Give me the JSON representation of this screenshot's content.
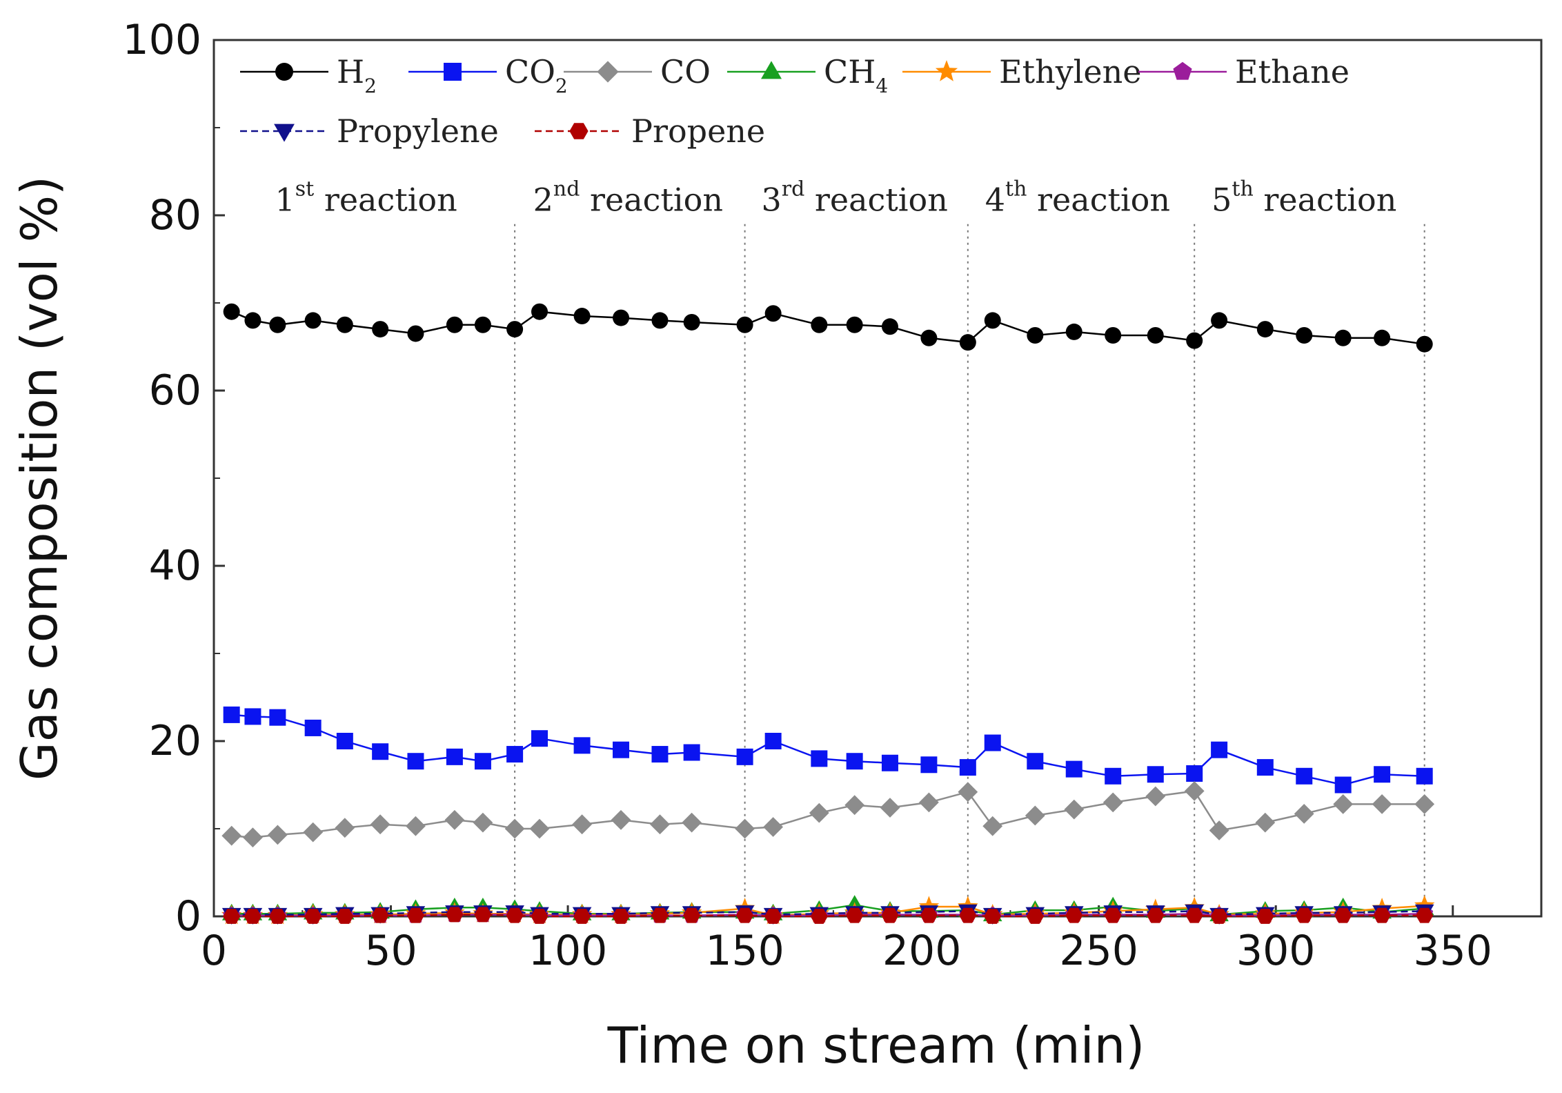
{
  "chart_data": {
    "type": "line",
    "xlabel": "Time on stream (min)",
    "ylabel": "Gas composition (vol %)",
    "xlim": [
      0,
      375
    ],
    "ylim": [
      0,
      100
    ],
    "xticks": [
      0,
      50,
      100,
      150,
      200,
      250,
      300,
      350
    ],
    "yticks": [
      0,
      20,
      40,
      60,
      80,
      100
    ],
    "grid": false,
    "legend_position": "top",
    "reaction_boundaries": [
      85,
      150,
      213,
      277,
      342
    ],
    "reactions": [
      {
        "num": "1",
        "sup": "st",
        "text": "reaction",
        "x": 43
      },
      {
        "num": "2",
        "sup": "nd",
        "text": "reaction",
        "x": 117
      },
      {
        "num": "3",
        "sup": "rd",
        "text": "reaction",
        "x": 181
      },
      {
        "num": "4",
        "sup": "th",
        "text": "reaction",
        "x": 244
      },
      {
        "num": "5",
        "sup": "th",
        "text": "reaction",
        "x": 308
      }
    ],
    "series": [
      {
        "name": "H2",
        "label": "H",
        "sub": "2",
        "color": "#000000",
        "marker": "circle",
        "dash": false,
        "x": [
          5,
          11,
          18,
          28,
          37,
          47,
          57,
          68,
          76,
          85,
          92,
          104,
          115,
          126,
          135,
          150,
          158,
          171,
          181,
          191,
          202,
          213,
          220,
          232,
          243,
          254,
          266,
          277,
          284,
          297,
          308,
          319,
          330,
          342
        ],
        "y": [
          69,
          68,
          67.5,
          68,
          67.5,
          67,
          66.5,
          67.5,
          67.5,
          67,
          69,
          68.5,
          68.3,
          68,
          67.8,
          67.5,
          68.8,
          67.5,
          67.5,
          67.3,
          66,
          65.5,
          68,
          66.3,
          66.7,
          66.3,
          66.3,
          65.7,
          68,
          67,
          66.3,
          66,
          66,
          65.3
        ]
      },
      {
        "name": "CO2",
        "label": "CO",
        "sub": "2",
        "color": "#0a14f0",
        "marker": "square",
        "dash": false,
        "x": [
          5,
          11,
          18,
          28,
          37,
          47,
          57,
          68,
          76,
          85,
          92,
          104,
          115,
          126,
          135,
          150,
          158,
          171,
          181,
          191,
          202,
          213,
          220,
          232,
          243,
          254,
          266,
          277,
          284,
          297,
          308,
          319,
          330,
          342
        ],
        "y": [
          23,
          22.8,
          22.7,
          21.5,
          20,
          18.8,
          17.7,
          18.2,
          17.7,
          18.5,
          20.3,
          19.5,
          19,
          18.5,
          18.7,
          18.2,
          20,
          18,
          17.7,
          17.5,
          17.3,
          17,
          19.8,
          17.7,
          16.8,
          16,
          16.2,
          16.3,
          19,
          17,
          16,
          15,
          16.2,
          16
        ]
      },
      {
        "name": "CO",
        "label": "CO",
        "sub": "",
        "color": "#8c8c8c",
        "marker": "diamond",
        "dash": false,
        "x": [
          5,
          11,
          18,
          28,
          37,
          47,
          57,
          68,
          76,
          85,
          92,
          104,
          115,
          126,
          135,
          150,
          158,
          171,
          181,
          191,
          202,
          213,
          220,
          232,
          243,
          254,
          266,
          277,
          284,
          297,
          308,
          319,
          330,
          342
        ],
        "y": [
          9.2,
          9,
          9.3,
          9.6,
          10.1,
          10.5,
          10.3,
          11,
          10.7,
          10,
          10,
          10.5,
          11,
          10.5,
          10.7,
          10,
          10.2,
          11.8,
          12.7,
          12.4,
          13,
          14.2,
          10.3,
          11.5,
          12.2,
          13,
          13.7,
          14.3,
          9.8,
          10.7,
          11.7,
          12.8,
          12.8,
          12.8
        ]
      },
      {
        "name": "CH4",
        "label": "CH",
        "sub": "4",
        "color": "#18a020",
        "marker": "triangle-up",
        "dash": false,
        "x": [
          5,
          11,
          18,
          28,
          37,
          47,
          57,
          68,
          76,
          85,
          92,
          104,
          115,
          126,
          135,
          150,
          158,
          171,
          181,
          191,
          202,
          213,
          220,
          232,
          243,
          254,
          266,
          277,
          284,
          297,
          308,
          319,
          330,
          342
        ],
        "y": [
          0.3,
          0.3,
          0.3,
          0.4,
          0.4,
          0.5,
          0.8,
          1,
          1,
          0.8,
          0.6,
          0.3,
          0.3,
          0.4,
          0.5,
          0.5,
          0.3,
          0.7,
          1.3,
          0.6,
          0.6,
          0.7,
          0.2,
          0.7,
          0.7,
          1.1,
          0.6,
          0.9,
          0.2,
          0.6,
          0.7,
          1,
          0.5,
          0.9
        ]
      },
      {
        "name": "Ethylene",
        "label": "Ethylene",
        "sub": "",
        "color": "#ff8c00",
        "marker": "star",
        "dash": false,
        "x": [
          5,
          11,
          18,
          28,
          37,
          47,
          57,
          68,
          76,
          85,
          92,
          104,
          115,
          126,
          135,
          150,
          158,
          171,
          181,
          191,
          202,
          213,
          220,
          232,
          243,
          254,
          266,
          277,
          284,
          297,
          308,
          319,
          330,
          342
        ],
        "y": [
          0.1,
          0.1,
          0.1,
          0.2,
          0.2,
          0.2,
          0.3,
          0.4,
          0.3,
          0.3,
          0.2,
          0.2,
          0.2,
          0.3,
          0.4,
          0.9,
          0.1,
          0.3,
          0.4,
          0.4,
          1.1,
          1.1,
          0.2,
          0.3,
          0.4,
          0.6,
          0.8,
          1,
          0.2,
          0.3,
          0.4,
          0.5,
          0.9,
          1.2
        ]
      },
      {
        "name": "Ethane",
        "label": "Ethane",
        "sub": "",
        "color": "#9b1d9b",
        "marker": "pentagon",
        "dash": false,
        "x": [
          5,
          11,
          18,
          28,
          37,
          47,
          57,
          68,
          76,
          85,
          92,
          104,
          115,
          126,
          135,
          150,
          158,
          171,
          181,
          191,
          202,
          213,
          220,
          232,
          243,
          254,
          266,
          277,
          284,
          297,
          308,
          319,
          330,
          342
        ],
        "y": [
          0.1,
          0.1,
          0.1,
          0.1,
          0.1,
          0.1,
          0.1,
          0.2,
          0.2,
          0.2,
          0.1,
          0.1,
          0.1,
          0.1,
          0.1,
          0.2,
          0.1,
          0.1,
          0.2,
          0.2,
          0.2,
          0.2,
          0.1,
          0.1,
          0.2,
          0.2,
          0.2,
          0.3,
          0.1,
          0.1,
          0.2,
          0.2,
          0.2,
          0.3
        ]
      },
      {
        "name": "Propylene",
        "label": "Propylene",
        "sub": "",
        "color": "#10108c",
        "marker": "triangle-down",
        "dash": true,
        "x": [
          5,
          11,
          18,
          28,
          37,
          47,
          57,
          68,
          76,
          85,
          92,
          104,
          115,
          126,
          135,
          150,
          158,
          171,
          181,
          191,
          202,
          213,
          220,
          232,
          243,
          254,
          266,
          277,
          284,
          297,
          308,
          319,
          330,
          342
        ],
        "y": [
          0.2,
          0.2,
          0.2,
          0.2,
          0.3,
          0.3,
          0.4,
          0.5,
          0.5,
          0.5,
          0.3,
          0.3,
          0.3,
          0.4,
          0.4,
          0.5,
          0.2,
          0.3,
          0.4,
          0.4,
          0.5,
          0.6,
          0.2,
          0.3,
          0.4,
          0.5,
          0.5,
          0.6,
          0.2,
          0.3,
          0.4,
          0.4,
          0.5,
          0.6
        ]
      },
      {
        "name": "Propene",
        "label": "Propene",
        "sub": "",
        "color": "#b00000",
        "marker": "hexagon",
        "dash": true,
        "x": [
          5,
          11,
          18,
          28,
          37,
          47,
          57,
          68,
          76,
          85,
          92,
          104,
          115,
          126,
          135,
          150,
          158,
          171,
          181,
          191,
          202,
          213,
          220,
          232,
          243,
          254,
          266,
          277,
          284,
          297,
          308,
          319,
          330,
          342
        ],
        "y": [
          0,
          0,
          0,
          0,
          0,
          0.1,
          0.1,
          0.2,
          0.2,
          0.1,
          0,
          0,
          0,
          0.1,
          0.1,
          0.1,
          0,
          0,
          0.1,
          0.1,
          0.1,
          0.1,
          0,
          0,
          0.1,
          0.1,
          0.1,
          0.1,
          0,
          0,
          0.1,
          0.1,
          0.1,
          0.1
        ]
      }
    ]
  }
}
